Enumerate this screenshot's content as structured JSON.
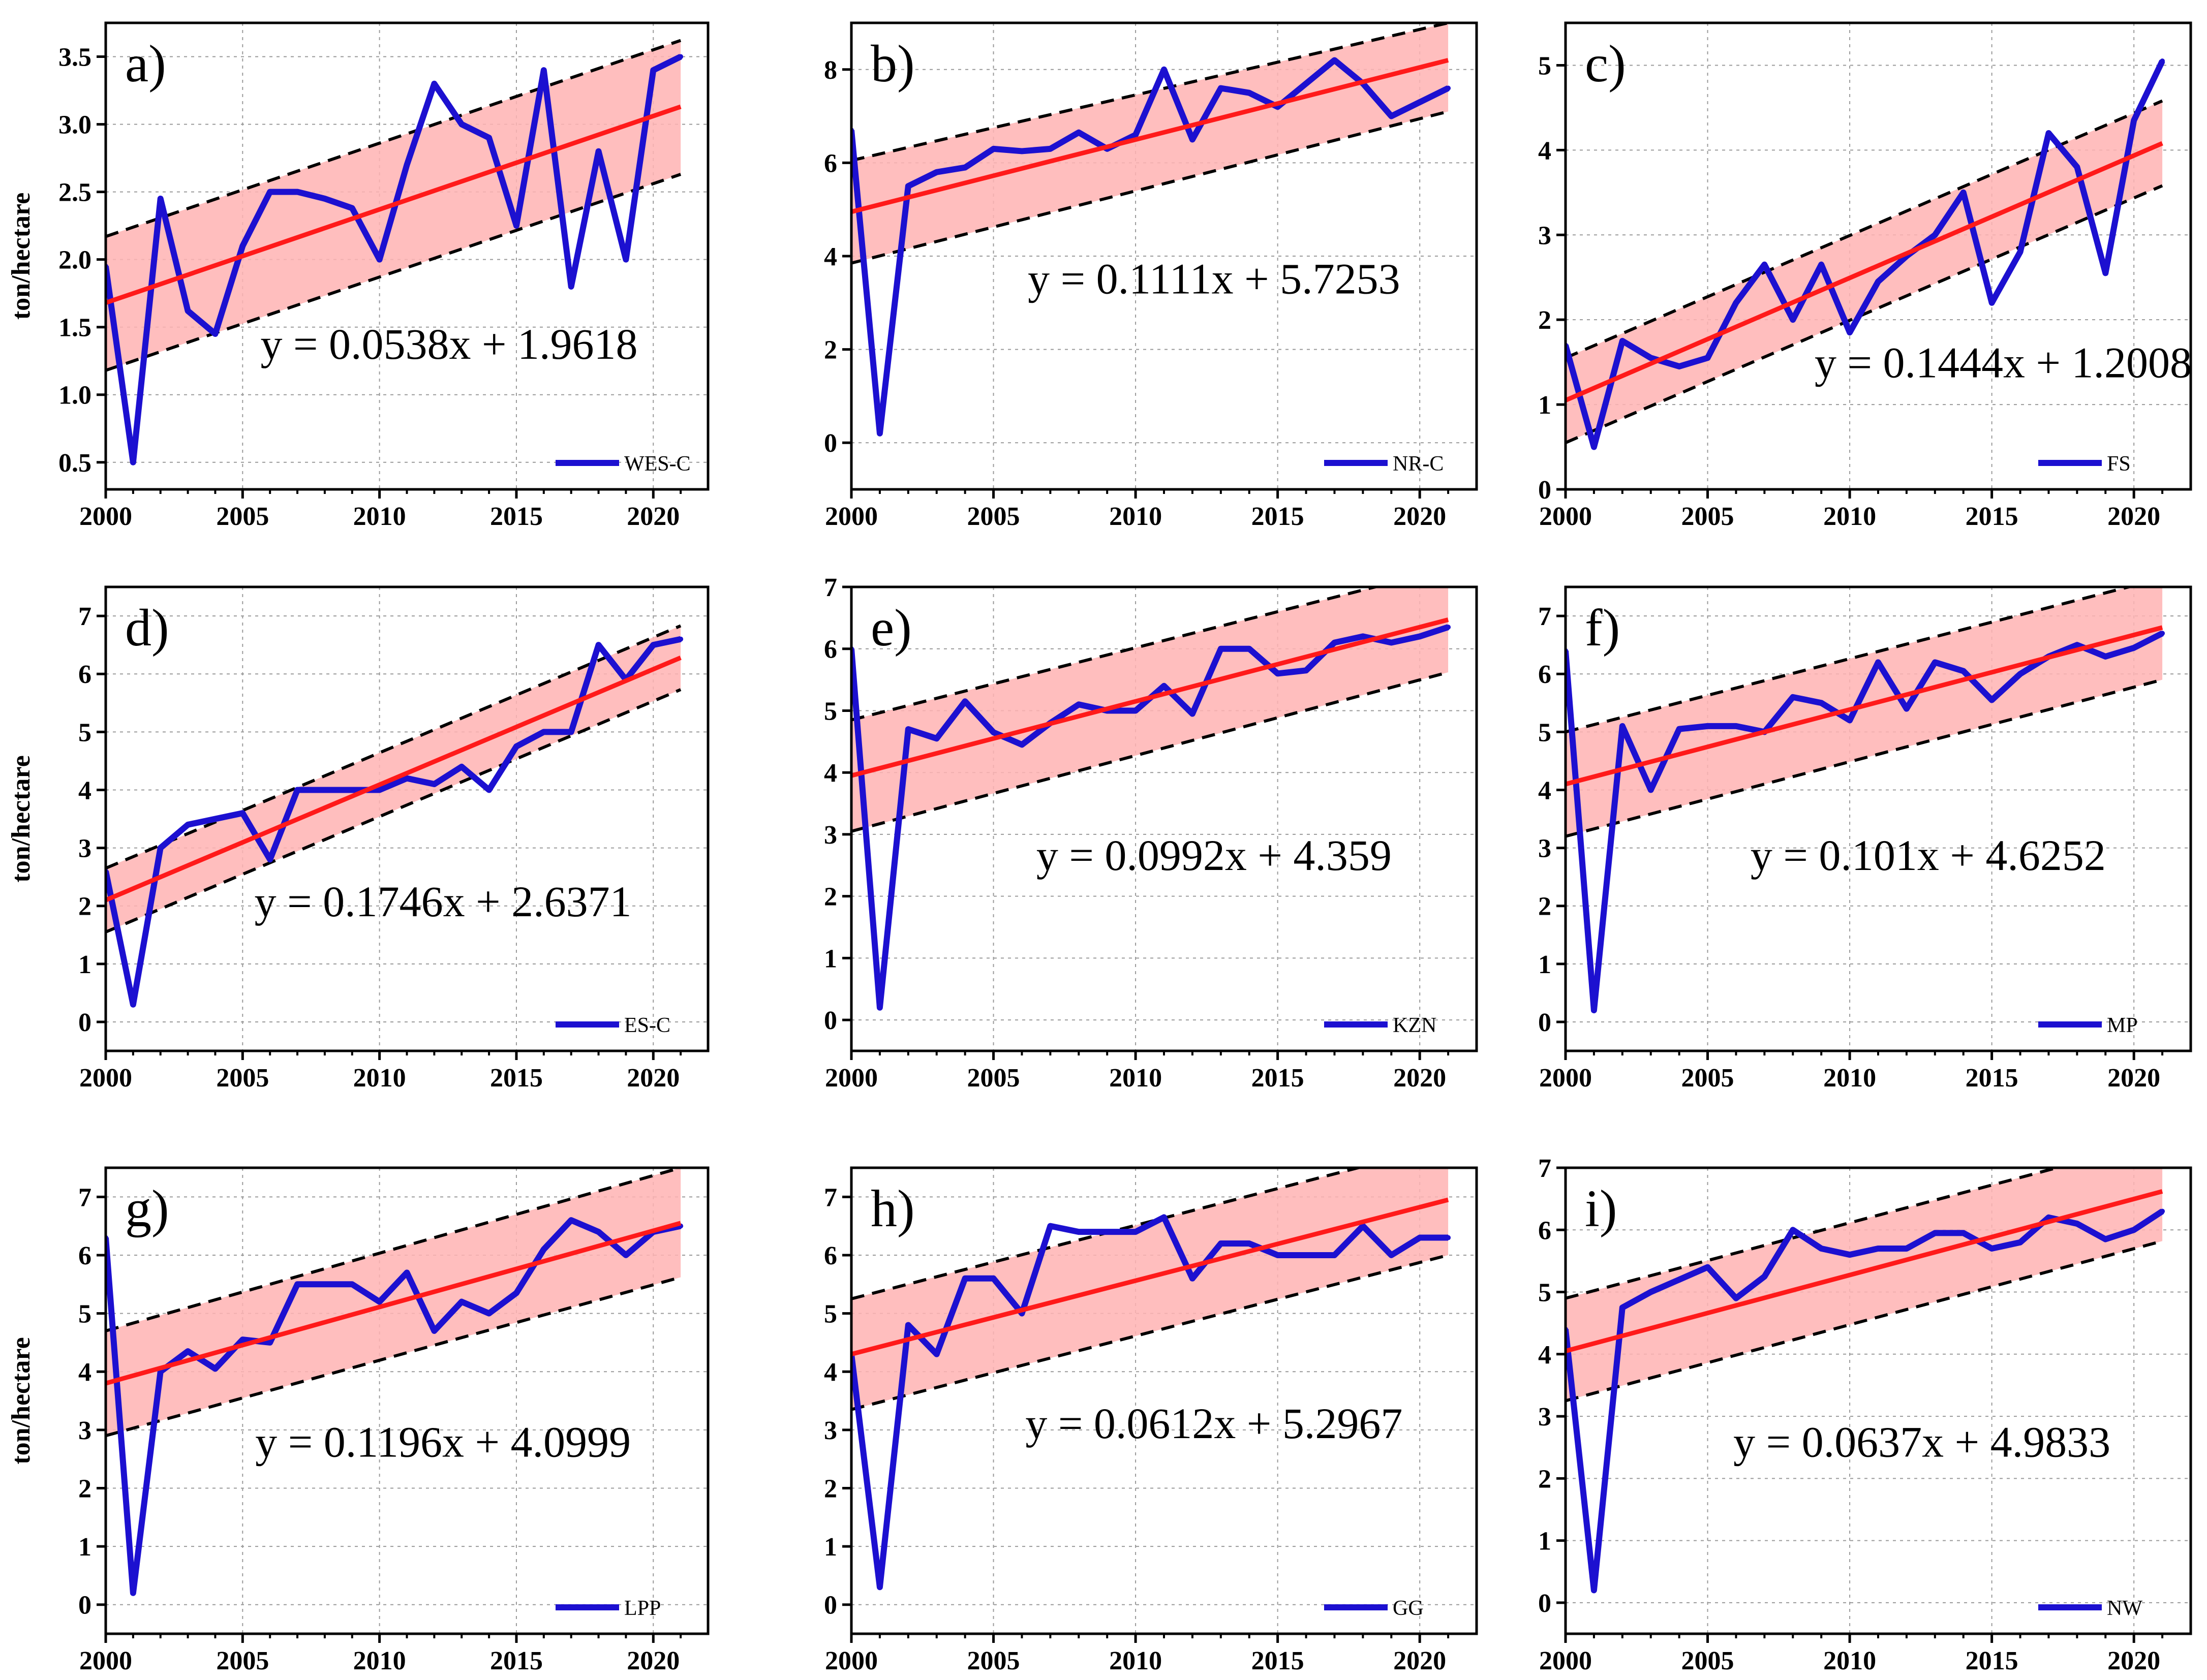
{
  "colors": {
    "series": "#1c10d0",
    "trend": "#ff1a1a",
    "band": "#ffb3b3",
    "bound": "#000000",
    "grid": "#9a9a9a",
    "axis": "#000000"
  },
  "chart_data": [
    {
      "type": "line",
      "panel_label": "a)",
      "ylabel": "ton/hectare",
      "legend": "WES-C",
      "legend_position": "bottom-right",
      "equation": "y = 0.0538x + 1.9618",
      "xlim": [
        2000,
        2022
      ],
      "ylim": [
        0.3,
        3.75
      ],
      "xticks": [
        2000,
        2005,
        2010,
        2015,
        2020
      ],
      "xtick_labels": [
        "2000",
        "2005",
        "2010",
        "2015",
        "2020"
      ],
      "yticks": [
        0.5,
        1.0,
        1.5,
        2.0,
        2.5,
        3.0,
        3.5
      ],
      "ytick_labels": [
        "0.5",
        "1.0",
        "1.5",
        "2.0",
        "2.5",
        "3.0",
        "3.5"
      ],
      "grid": true,
      "x": [
        2000,
        2001,
        2002,
        2003,
        2004,
        2005,
        2006,
        2007,
        2008,
        2009,
        2010,
        2011,
        2012,
        2013,
        2014,
        2015,
        2016,
        2017,
        2018,
        2019,
        2020,
        2021
      ],
      "values": [
        1.95,
        0.5,
        2.45,
        1.62,
        1.45,
        2.1,
        2.5,
        2.5,
        2.45,
        2.38,
        2.0,
        2.7,
        3.3,
        3.0,
        2.9,
        2.25,
        3.4,
        1.8,
        2.8,
        2.0,
        3.4,
        3.5
      ],
      "trend": [
        [
          2000,
          1.68
        ],
        [
          2021,
          3.13
        ]
      ],
      "upper": [
        [
          2000,
          2.17
        ],
        [
          2021,
          3.62
        ]
      ],
      "lower": [
        [
          2000,
          1.18
        ],
        [
          2021,
          2.63
        ]
      ]
    },
    {
      "type": "line",
      "panel_label": "b)",
      "ylabel": "",
      "legend": "NR-C",
      "legend_position": "bottom-right",
      "equation": "y = 0.1111x + 5.7253",
      "xlim": [
        2000,
        2022
      ],
      "ylim": [
        -1,
        9
      ],
      "xticks": [
        2000,
        2005,
        2010,
        2015,
        2020
      ],
      "xtick_labels": [
        "2000",
        "2005",
        "2010",
        "2015",
        "2020"
      ],
      "yticks": [
        0,
        2,
        4,
        6,
        8
      ],
      "ytick_labels": [
        "0",
        "2",
        "4",
        "6",
        "8"
      ],
      "grid": true,
      "x": [
        2000,
        2001,
        2002,
        2003,
        2004,
        2005,
        2006,
        2007,
        2008,
        2009,
        2010,
        2011,
        2012,
        2013,
        2014,
        2015,
        2016,
        2017,
        2018,
        2019,
        2020,
        2021
      ],
      "values": [
        6.7,
        0.2,
        5.5,
        5.8,
        5.9,
        6.3,
        6.25,
        6.3,
        6.65,
        6.3,
        6.6,
        8.0,
        6.5,
        7.6,
        7.5,
        7.2,
        7.7,
        8.2,
        7.7,
        7.0,
        7.3,
        7.6
      ],
      "trend": [
        [
          2000,
          4.95
        ],
        [
          2021,
          8.2
        ]
      ],
      "upper": [
        [
          2000,
          6.05
        ],
        [
          2021,
          9.0
        ]
      ],
      "lower": [
        [
          2000,
          3.85
        ],
        [
          2021,
          7.1
        ]
      ]
    },
    {
      "type": "line",
      "panel_label": "c)",
      "ylabel": "",
      "legend": "FS",
      "legend_position": "bottom-right",
      "equation": "y = 0.1444x + 1.2008",
      "xlim": [
        2000,
        2022
      ],
      "ylim": [
        0,
        5.5
      ],
      "xticks": [
        2000,
        2005,
        2010,
        2015,
        2020
      ],
      "xtick_labels": [
        "2000",
        "2005",
        "2010",
        "2015",
        "2020"
      ],
      "yticks": [
        0,
        1,
        2,
        3,
        4,
        5
      ],
      "ytick_labels": [
        "0",
        "1",
        "2",
        "3",
        "4",
        "5"
      ],
      "grid": true,
      "x": [
        2000,
        2001,
        2002,
        2003,
        2004,
        2005,
        2006,
        2007,
        2008,
        2009,
        2010,
        2011,
        2012,
        2013,
        2014,
        2015,
        2016,
        2017,
        2018,
        2019,
        2020,
        2021
      ],
      "values": [
        1.7,
        0.5,
        1.75,
        1.55,
        1.45,
        1.55,
        2.2,
        2.65,
        2.0,
        2.65,
        1.85,
        2.45,
        2.75,
        3.0,
        3.5,
        2.2,
        2.8,
        4.2,
        3.8,
        2.55,
        4.35,
        5.05
      ],
      "trend": [
        [
          2000,
          1.05
        ],
        [
          2021,
          4.08
        ]
      ],
      "upper": [
        [
          2000,
          1.55
        ],
        [
          2021,
          4.58
        ]
      ],
      "lower": [
        [
          2000,
          0.55
        ],
        [
          2021,
          3.58
        ]
      ]
    },
    {
      "type": "line",
      "panel_label": "d)",
      "ylabel": "ton/hectare",
      "legend": "ES-C",
      "legend_position": "bottom-right",
      "equation": "y = 0.1746x + 2.6371",
      "xlim": [
        2000,
        2022
      ],
      "ylim": [
        -0.5,
        7.5
      ],
      "xticks": [
        2000,
        2005,
        2010,
        2015,
        2020
      ],
      "xtick_labels": [
        "2000",
        "2005",
        "2010",
        "2015",
        "2020"
      ],
      "yticks": [
        0,
        1,
        2,
        3,
        4,
        5,
        6,
        7
      ],
      "ytick_labels": [
        "0",
        "1",
        "2",
        "3",
        "4",
        "5",
        "6",
        "7"
      ],
      "grid": true,
      "x": [
        2000,
        2001,
        2002,
        2003,
        2004,
        2005,
        2006,
        2007,
        2008,
        2009,
        2010,
        2011,
        2012,
        2013,
        2014,
        2015,
        2016,
        2017,
        2018,
        2019,
        2020,
        2021
      ],
      "values": [
        2.6,
        0.3,
        3.0,
        3.4,
        3.5,
        3.6,
        2.8,
        4.0,
        4.0,
        4.0,
        4.0,
        4.2,
        4.1,
        4.4,
        4.0,
        4.75,
        5.0,
        5.0,
        6.5,
        5.9,
        6.5,
        6.6
      ],
      "trend": [
        [
          2000,
          2.1
        ],
        [
          2021,
          6.28
        ]
      ],
      "upper": [
        [
          2000,
          2.65
        ],
        [
          2021,
          6.83
        ]
      ],
      "lower": [
        [
          2000,
          1.55
        ],
        [
          2021,
          5.73
        ]
      ]
    },
    {
      "type": "line",
      "panel_label": "e)",
      "ylabel": "",
      "legend": "KZN",
      "legend_position": "bottom-right",
      "equation": "y = 0.0992x + 4.359",
      "xlim": [
        2000,
        2022
      ],
      "ylim": [
        -0.5,
        7
      ],
      "xticks": [
        2000,
        2005,
        2010,
        2015,
        2020
      ],
      "xtick_labels": [
        "2000",
        "2005",
        "2010",
        "2015",
        "2020"
      ],
      "yticks": [
        0,
        1,
        2,
        3,
        4,
        5,
        6,
        7
      ],
      "ytick_labels": [
        "0",
        "1",
        "2",
        "3",
        "4",
        "5",
        "6",
        "7"
      ],
      "grid": true,
      "x": [
        2000,
        2001,
        2002,
        2003,
        2004,
        2005,
        2006,
        2007,
        2008,
        2009,
        2010,
        2011,
        2012,
        2013,
        2014,
        2015,
        2016,
        2017,
        2018,
        2019,
        2020,
        2021
      ],
      "values": [
        6.0,
        0.2,
        4.7,
        4.55,
        5.15,
        4.65,
        4.45,
        4.8,
        5.1,
        5.0,
        5.0,
        5.4,
        4.95,
        6.0,
        6.0,
        5.6,
        5.65,
        6.1,
        6.2,
        6.1,
        6.2,
        6.35
      ],
      "trend": [
        [
          2000,
          3.95
        ],
        [
          2021,
          6.47
        ]
      ],
      "upper": [
        [
          2000,
          4.85
        ],
        [
          2021,
          7.3
        ]
      ],
      "lower": [
        [
          2000,
          3.05
        ],
        [
          2021,
          5.62
        ]
      ]
    },
    {
      "type": "line",
      "panel_label": "f)",
      "ylabel": "",
      "legend": "MP",
      "legend_position": "bottom-right",
      "equation": "y = 0.101x + 4.6252",
      "xlim": [
        2000,
        2022
      ],
      "ylim": [
        -0.5,
        7.5
      ],
      "xticks": [
        2000,
        2005,
        2010,
        2015,
        2020
      ],
      "xtick_labels": [
        "2000",
        "2005",
        "2010",
        "2015",
        "2020"
      ],
      "yticks": [
        0,
        1,
        2,
        3,
        4,
        5,
        6,
        7
      ],
      "ytick_labels": [
        "0",
        "1",
        "2",
        "3",
        "4",
        "5",
        "6",
        "7"
      ],
      "grid": true,
      "x": [
        2000,
        2001,
        2002,
        2003,
        2004,
        2005,
        2006,
        2007,
        2008,
        2009,
        2010,
        2011,
        2012,
        2013,
        2014,
        2015,
        2016,
        2017,
        2018,
        2019,
        2020,
        2021
      ],
      "values": [
        6.4,
        0.2,
        5.1,
        4.0,
        5.05,
        5.1,
        5.1,
        5.0,
        5.6,
        5.5,
        5.2,
        6.2,
        5.4,
        6.2,
        6.05,
        5.55,
        6.0,
        6.3,
        6.5,
        6.3,
        6.45,
        6.7
      ],
      "trend": [
        [
          2000,
          4.1
        ],
        [
          2021,
          6.8
        ]
      ],
      "upper": [
        [
          2000,
          5.0
        ],
        [
          2021,
          7.65
        ]
      ],
      "lower": [
        [
          2000,
          3.2
        ],
        [
          2021,
          5.9
        ]
      ]
    },
    {
      "type": "line",
      "panel_label": "g)",
      "ylabel": "ton/hectare",
      "legend": "LPP",
      "legend_position": "bottom-right",
      "equation": "y = 0.1196x + 4.0999",
      "xlim": [
        2000,
        2022
      ],
      "ylim": [
        -0.5,
        7.5
      ],
      "xticks": [
        2000,
        2005,
        2010,
        2015,
        2020
      ],
      "xtick_labels": [
        "2000",
        "2005",
        "2010",
        "2015",
        "2020"
      ],
      "yticks": [
        0,
        1,
        2,
        3,
        4,
        5,
        6,
        7
      ],
      "ytick_labels": [
        "0",
        "1",
        "2",
        "3",
        "4",
        "5",
        "6",
        "7"
      ],
      "grid": true,
      "x": [
        2000,
        2001,
        2002,
        2003,
        2004,
        2005,
        2006,
        2007,
        2008,
        2009,
        2010,
        2011,
        2012,
        2013,
        2014,
        2015,
        2016,
        2017,
        2018,
        2019,
        2020,
        2021
      ],
      "values": [
        6.3,
        0.2,
        4.0,
        4.35,
        4.05,
        4.55,
        4.5,
        5.5,
        5.5,
        5.5,
        5.2,
        5.7,
        4.7,
        5.2,
        5.0,
        5.35,
        6.1,
        6.6,
        6.4,
        6.0,
        6.4,
        6.5
      ],
      "trend": [
        [
          2000,
          3.8
        ],
        [
          2021,
          6.55
        ]
      ],
      "upper": [
        [
          2000,
          4.7
        ],
        [
          2021,
          7.5
        ]
      ],
      "lower": [
        [
          2000,
          2.9
        ],
        [
          2021,
          5.62
        ]
      ]
    },
    {
      "type": "line",
      "panel_label": "h)",
      "ylabel": "",
      "legend": "GG",
      "legend_position": "bottom-right",
      "equation": "y = 0.0612x + 5.2967",
      "xlim": [
        2000,
        2022
      ],
      "ylim": [
        -0.5,
        7.5
      ],
      "xticks": [
        2000,
        2005,
        2010,
        2015,
        2020
      ],
      "xtick_labels": [
        "2000",
        "2005",
        "2010",
        "2015",
        "2020"
      ],
      "yticks": [
        0,
        1,
        2,
        3,
        4,
        5,
        6,
        7
      ],
      "ytick_labels": [
        "0",
        "1",
        "2",
        "3",
        "4",
        "5",
        "6",
        "7"
      ],
      "grid": true,
      "x": [
        2000,
        2001,
        2002,
        2003,
        2004,
        2005,
        2006,
        2007,
        2008,
        2009,
        2010,
        2011,
        2012,
        2013,
        2014,
        2015,
        2016,
        2017,
        2018,
        2019,
        2020,
        2021
      ],
      "values": [
        4.3,
        0.3,
        4.8,
        4.3,
        5.6,
        5.6,
        5.0,
        6.5,
        6.4,
        6.4,
        6.4,
        6.65,
        5.6,
        6.2,
        6.2,
        6.0,
        6.0,
        6.0,
        6.5,
        6.0,
        6.3,
        6.3
      ],
      "trend": [
        [
          2000,
          4.3
        ],
        [
          2021,
          6.95
        ]
      ],
      "upper": [
        [
          2000,
          5.25
        ],
        [
          2021,
          7.9
        ]
      ],
      "lower": [
        [
          2000,
          3.35
        ],
        [
          2021,
          6.0
        ]
      ]
    },
    {
      "type": "line",
      "panel_label": "i)",
      "ylabel": "",
      "legend": "NW",
      "legend_position": "bottom-right",
      "equation": "y = 0.0637x + 4.9833",
      "xlim": [
        2000,
        2022
      ],
      "ylim": [
        -0.5,
        7
      ],
      "xticks": [
        2000,
        2005,
        2010,
        2015,
        2020
      ],
      "xtick_labels": [
        "2000",
        "2005",
        "2010",
        "2015",
        "2020"
      ],
      "yticks": [
        0,
        1,
        2,
        3,
        4,
        5,
        6,
        7
      ],
      "ytick_labels": [
        "0",
        "1",
        "2",
        "3",
        "4",
        "5",
        "6",
        "7"
      ],
      "grid": true,
      "x": [
        2000,
        2001,
        2002,
        2003,
        2004,
        2005,
        2006,
        2007,
        2008,
        2009,
        2010,
        2011,
        2012,
        2013,
        2014,
        2015,
        2016,
        2017,
        2018,
        2019,
        2020,
        2021
      ],
      "values": [
        4.4,
        0.2,
        4.75,
        5.0,
        5.2,
        5.4,
        4.9,
        5.25,
        6.0,
        5.7,
        5.6,
        5.7,
        5.7,
        5.95,
        5.95,
        5.7,
        5.8,
        6.2,
        6.1,
        5.85,
        6.0,
        6.3
      ],
      "trend": [
        [
          2000,
          4.05
        ],
        [
          2021,
          6.62
        ]
      ],
      "upper": [
        [
          2000,
          4.9
        ],
        [
          2021,
          7.45
        ]
      ],
      "lower": [
        [
          2000,
          3.25
        ],
        [
          2021,
          5.82
        ]
      ]
    }
  ]
}
